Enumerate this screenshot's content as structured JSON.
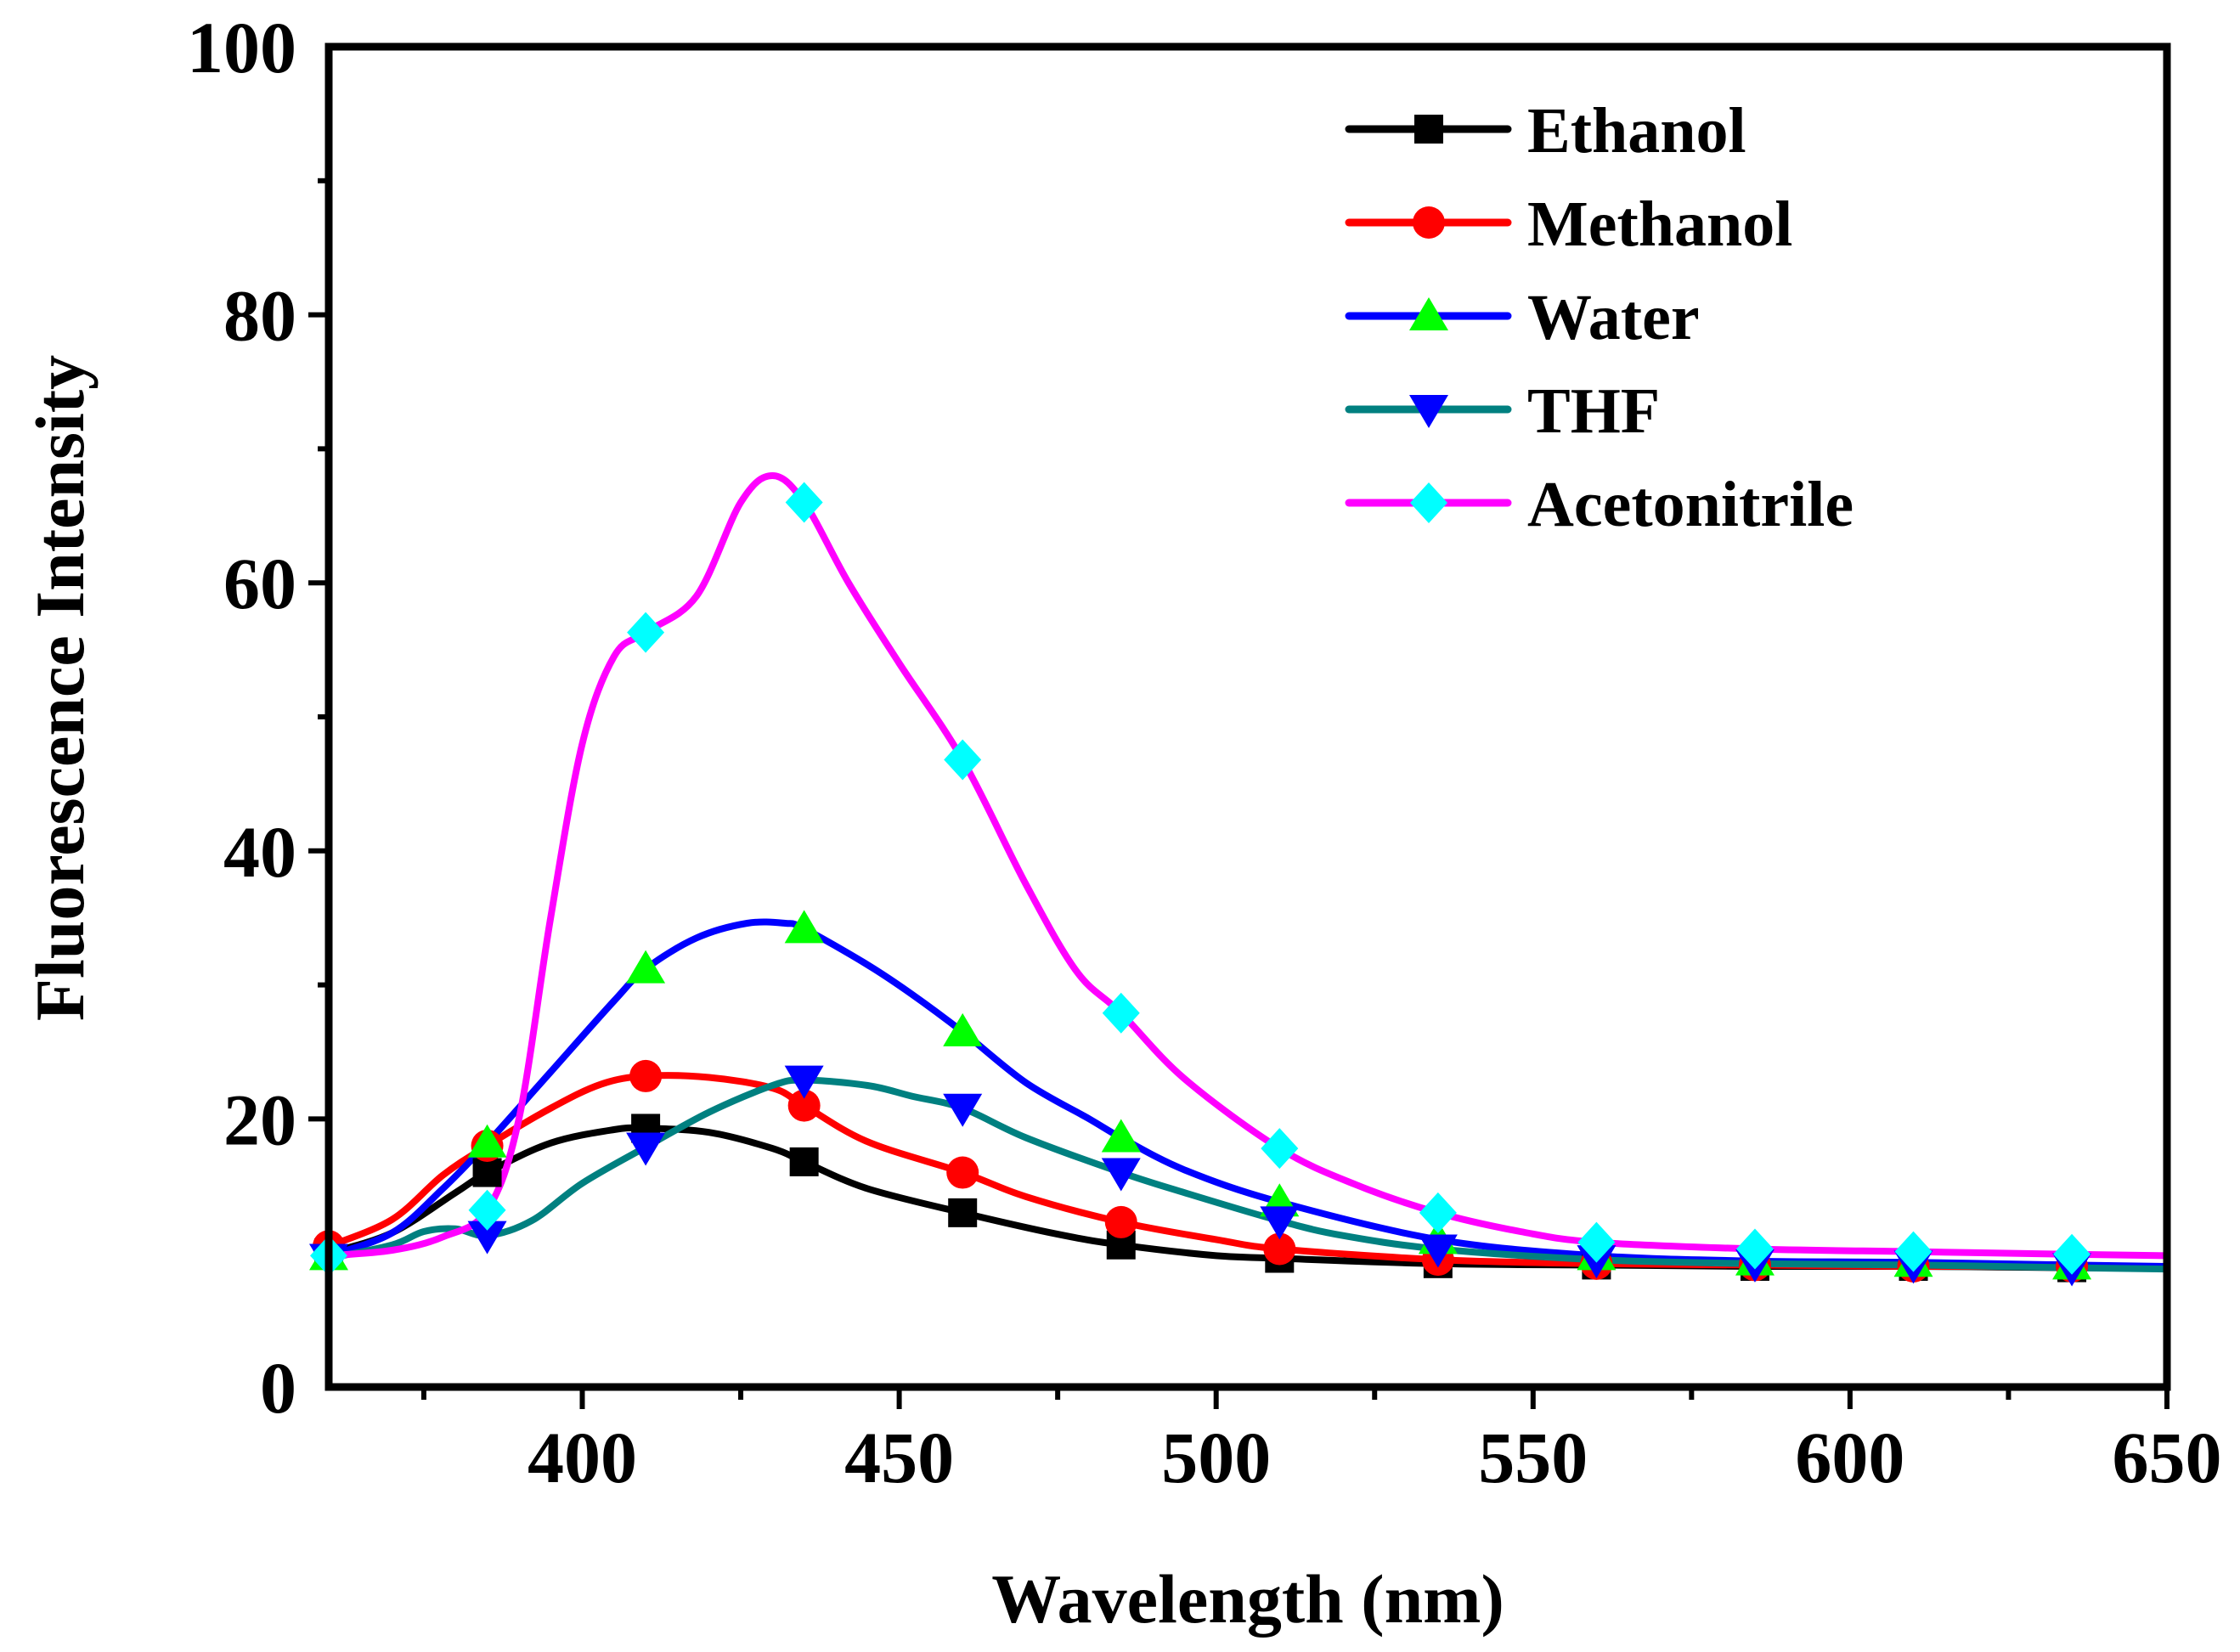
{
  "chart_data": {
    "type": "line",
    "title": "",
    "xlabel": "Wavelength (nm)",
    "ylabel": "Fluorescence Intensity",
    "xlim": [
      360,
      650
    ],
    "ylim": [
      0,
      100
    ],
    "x_ticks": [
      400,
      450,
      500,
      550,
      600,
      650
    ],
    "x_tick_labels": [
      "400",
      "450",
      "500",
      "550",
      "600",
      "650"
    ],
    "y_ticks": [
      0,
      20,
      40,
      60,
      80,
      100
    ],
    "y_tick_labels": [
      "0",
      "20",
      "40",
      "60",
      "80",
      "100"
    ],
    "legend_position": "top-right",
    "grid": false,
    "series": [
      {
        "name": "Ethanol",
        "color": "#000000",
        "marker": "square",
        "curve": [
          [
            360,
            10
          ],
          [
            370,
            11.5
          ],
          [
            380,
            14.5
          ],
          [
            385,
            16
          ],
          [
            395,
            18.2
          ],
          [
            405,
            19.2
          ],
          [
            410,
            19.3
          ],
          [
            420,
            19
          ],
          [
            430,
            17.8
          ],
          [
            435,
            16.8
          ],
          [
            445,
            14.8
          ],
          [
            460,
            13
          ],
          [
            475,
            11.4
          ],
          [
            485,
            10.6
          ],
          [
            500,
            9.8
          ],
          [
            510,
            9.6
          ],
          [
            535,
            9.2
          ],
          [
            560,
            9.1
          ],
          [
            585,
            9.0
          ],
          [
            610,
            9.0
          ],
          [
            635,
            8.9
          ],
          [
            650,
            8.9
          ]
        ],
        "marker_points": [
          [
            360,
            10
          ],
          [
            385,
            16
          ],
          [
            410,
            19.3
          ],
          [
            435,
            16.8
          ],
          [
            460,
            13
          ],
          [
            485,
            10.6
          ],
          [
            510,
            9.6
          ],
          [
            535,
            9.2
          ],
          [
            560,
            9.1
          ],
          [
            585,
            9.0
          ],
          [
            610,
            9.0
          ],
          [
            635,
            8.9
          ]
        ]
      },
      {
        "name": "Methanol",
        "color": "#ff0000",
        "marker": "circle",
        "curve": [
          [
            360,
            10.5
          ],
          [
            370,
            12.5
          ],
          [
            378,
            15.8
          ],
          [
            385,
            18
          ],
          [
            395,
            20.8
          ],
          [
            403,
            22.6
          ],
          [
            410,
            23.2
          ],
          [
            420,
            23.1
          ],
          [
            430,
            22.3
          ],
          [
            435,
            21
          ],
          [
            445,
            18.3
          ],
          [
            460,
            16
          ],
          [
            470,
            14.2
          ],
          [
            485,
            12.3
          ],
          [
            500,
            11
          ],
          [
            510,
            10.3
          ],
          [
            535,
            9.5
          ],
          [
            560,
            9.2
          ],
          [
            585,
            9.1
          ],
          [
            610,
            9.0
          ],
          [
            635,
            9.0
          ],
          [
            650,
            8.9
          ]
        ],
        "marker_points": [
          [
            360,
            10.5
          ],
          [
            385,
            18
          ],
          [
            410,
            23.2
          ],
          [
            435,
            21
          ],
          [
            460,
            16
          ],
          [
            485,
            12.3
          ],
          [
            510,
            10.3
          ],
          [
            535,
            9.5
          ],
          [
            560,
            9.2
          ],
          [
            585,
            9.1
          ],
          [
            610,
            9.0
          ],
          [
            635,
            9.0
          ]
        ]
      },
      {
        "name": "Water",
        "color": "#0000ff",
        "marker_color": "#00ff00",
        "marker": "triangle-up",
        "curve": [
          [
            360,
            9.8
          ],
          [
            370,
            11.5
          ],
          [
            378,
            14.8
          ],
          [
            385,
            18.2
          ],
          [
            395,
            23.5
          ],
          [
            405,
            28.8
          ],
          [
            410,
            31.2
          ],
          [
            418,
            33.5
          ],
          [
            426,
            34.6
          ],
          [
            432,
            34.6
          ],
          [
            435,
            34.2
          ],
          [
            445,
            31.5
          ],
          [
            452,
            29.3
          ],
          [
            460,
            26.5
          ],
          [
            470,
            22.7
          ],
          [
            480,
            20
          ],
          [
            485,
            18.6
          ],
          [
            495,
            16.2
          ],
          [
            510,
            13.8
          ],
          [
            535,
            11
          ],
          [
            560,
            9.8
          ],
          [
            585,
            9.4
          ],
          [
            610,
            9.3
          ],
          [
            635,
            9.1
          ],
          [
            650,
            9.0
          ]
        ],
        "marker_points": [
          [
            360,
            9.8
          ],
          [
            385,
            18.2
          ],
          [
            410,
            31.2
          ],
          [
            435,
            34.2
          ],
          [
            460,
            26.5
          ],
          [
            485,
            18.6
          ],
          [
            510,
            13.8
          ],
          [
            535,
            11
          ],
          [
            560,
            9.8
          ],
          [
            585,
            9.4
          ],
          [
            610,
            9.3
          ],
          [
            635,
            9.1
          ]
        ]
      },
      {
        "name": "THF",
        "color": "#008080",
        "marker_color": "#0000ff",
        "marker": "triangle-down",
        "curve": [
          [
            360,
            9.6
          ],
          [
            370,
            10.6
          ],
          [
            375,
            11.6
          ],
          [
            380,
            11.8
          ],
          [
            385,
            11.3
          ],
          [
            392,
            12.4
          ],
          [
            400,
            15.2
          ],
          [
            410,
            17.9
          ],
          [
            420,
            20.5
          ],
          [
            430,
            22.5
          ],
          [
            435,
            22.9
          ],
          [
            445,
            22.5
          ],
          [
            452,
            21.7
          ],
          [
            460,
            20.8
          ],
          [
            470,
            18.6
          ],
          [
            485,
            16
          ],
          [
            495,
            14.5
          ],
          [
            510,
            12.4
          ],
          [
            520,
            11.3
          ],
          [
            535,
            10.3
          ],
          [
            560,
            9.5
          ],
          [
            585,
            9.2
          ],
          [
            610,
            9.1
          ],
          [
            635,
            8.9
          ],
          [
            650,
            8.8
          ]
        ],
        "marker_points": [
          [
            360,
            9.6
          ],
          [
            385,
            11.3
          ],
          [
            410,
            17.9
          ],
          [
            435,
            22.9
          ],
          [
            460,
            20.8
          ],
          [
            485,
            16
          ],
          [
            510,
            12.4
          ],
          [
            535,
            10.3
          ],
          [
            560,
            9.5
          ],
          [
            585,
            9.2
          ],
          [
            610,
            9.1
          ],
          [
            635,
            8.9
          ]
        ]
      },
      {
        "name": "Acetonitrile",
        "color": "#ff00ff",
        "marker_color": "#00ffff",
        "marker": "diamond",
        "curve": [
          [
            360,
            9.8
          ],
          [
            370,
            10.2
          ],
          [
            378,
            11.2
          ],
          [
            385,
            13.2
          ],
          [
            390,
            20
          ],
          [
            395,
            35
          ],
          [
            400,
            48
          ],
          [
            405,
            54.5
          ],
          [
            410,
            56.3
          ],
          [
            418,
            59
          ],
          [
            425,
            66
          ],
          [
            430,
            68
          ],
          [
            435,
            66
          ],
          [
            442,
            60
          ],
          [
            450,
            54
          ],
          [
            460,
            46.8
          ],
          [
            470,
            37.5
          ],
          [
            478,
            31
          ],
          [
            485,
            27.9
          ],
          [
            495,
            23
          ],
          [
            510,
            17.8
          ],
          [
            522,
            15.1
          ],
          [
            535,
            13
          ],
          [
            548,
            11.6
          ],
          [
            560,
            10.8
          ],
          [
            585,
            10.3
          ],
          [
            610,
            10.1
          ],
          [
            635,
            9.9
          ],
          [
            650,
            9.8
          ]
        ],
        "marker_points": [
          [
            360,
            9.8
          ],
          [
            385,
            13.2
          ],
          [
            410,
            56.3
          ],
          [
            435,
            66
          ],
          [
            460,
            46.8
          ],
          [
            485,
            27.9
          ],
          [
            510,
            17.8
          ],
          [
            535,
            13
          ],
          [
            560,
            10.8
          ],
          [
            585,
            10.3
          ],
          [
            610,
            10.1
          ],
          [
            635,
            9.9
          ]
        ]
      }
    ]
  }
}
